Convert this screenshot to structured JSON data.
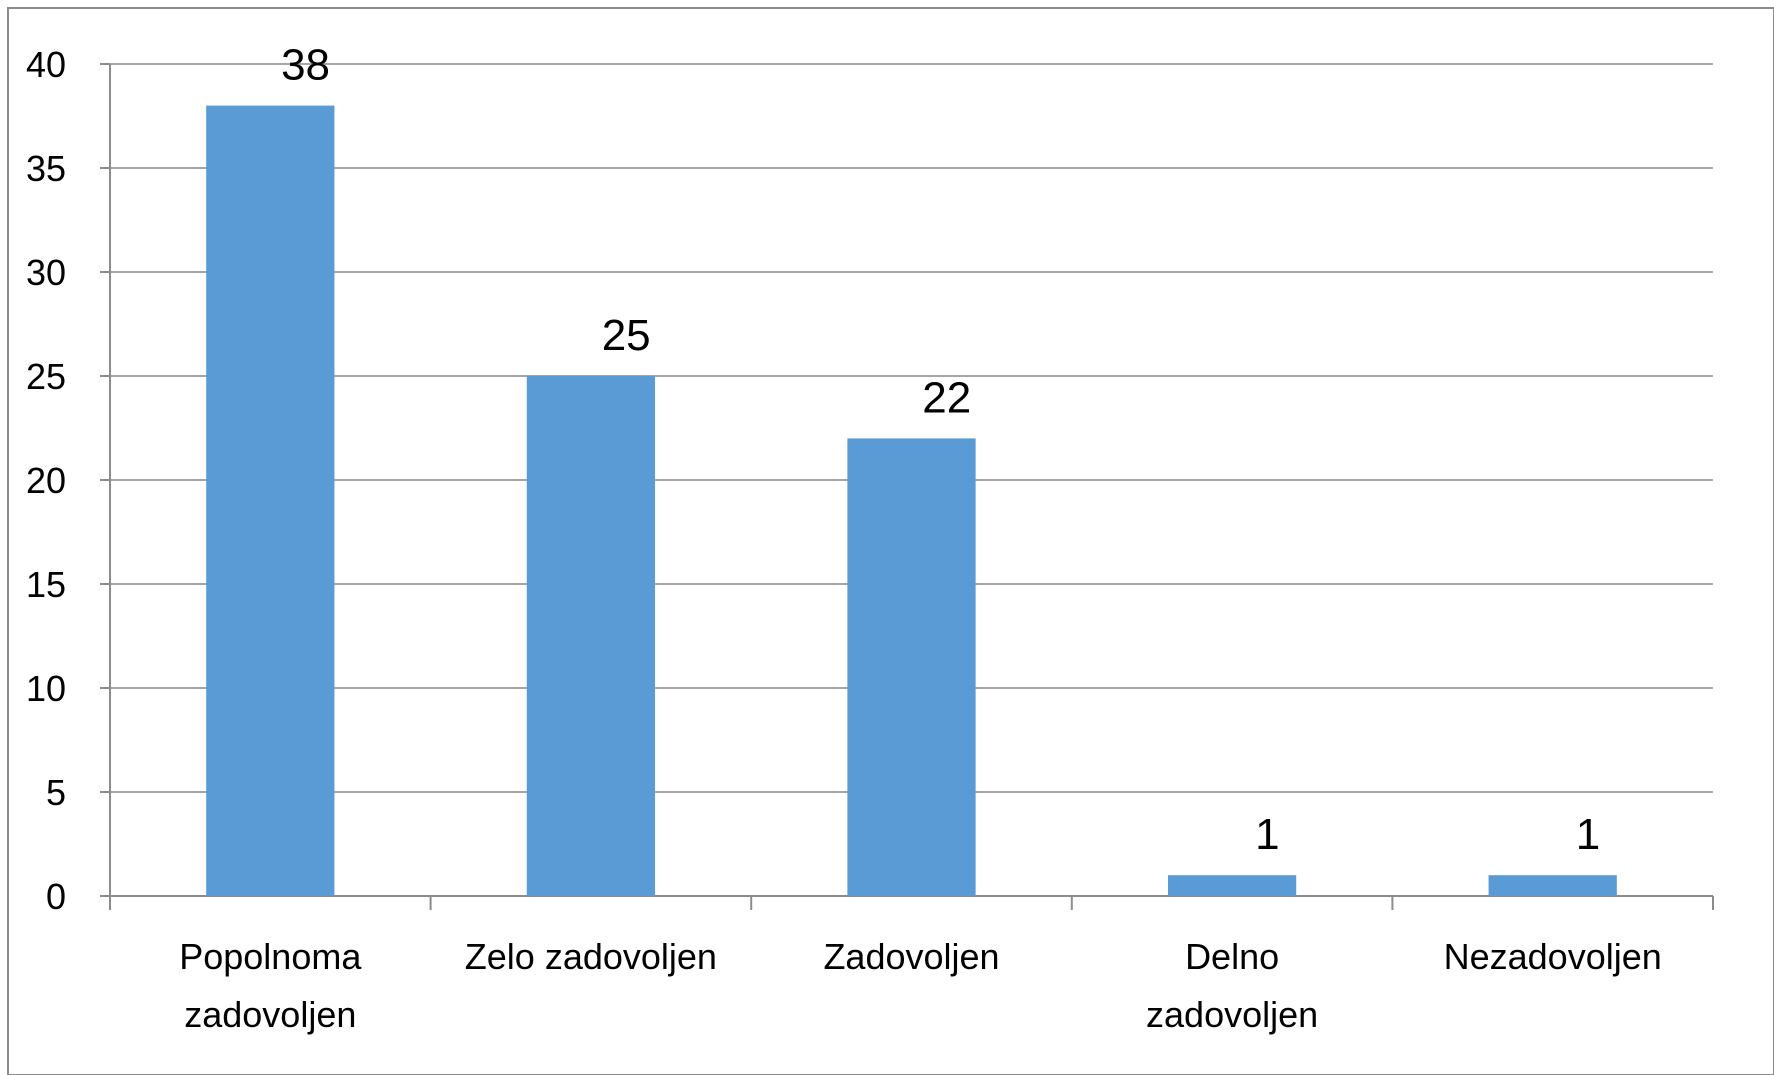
{
  "chart_data": {
    "type": "bar",
    "categories": [
      "Popolnoma zadovoljen",
      "Zelo zadovoljen",
      "Zadovoljen",
      "Delno zadovoljen",
      "Nezadovoljen"
    ],
    "values": [
      38,
      25,
      22,
      1,
      1
    ],
    "color": "#5b9bd5",
    "ylim": [
      0,
      40
    ],
    "yticks": [
      0,
      5,
      10,
      15,
      20,
      25,
      30,
      35,
      40
    ],
    "grid": true
  }
}
